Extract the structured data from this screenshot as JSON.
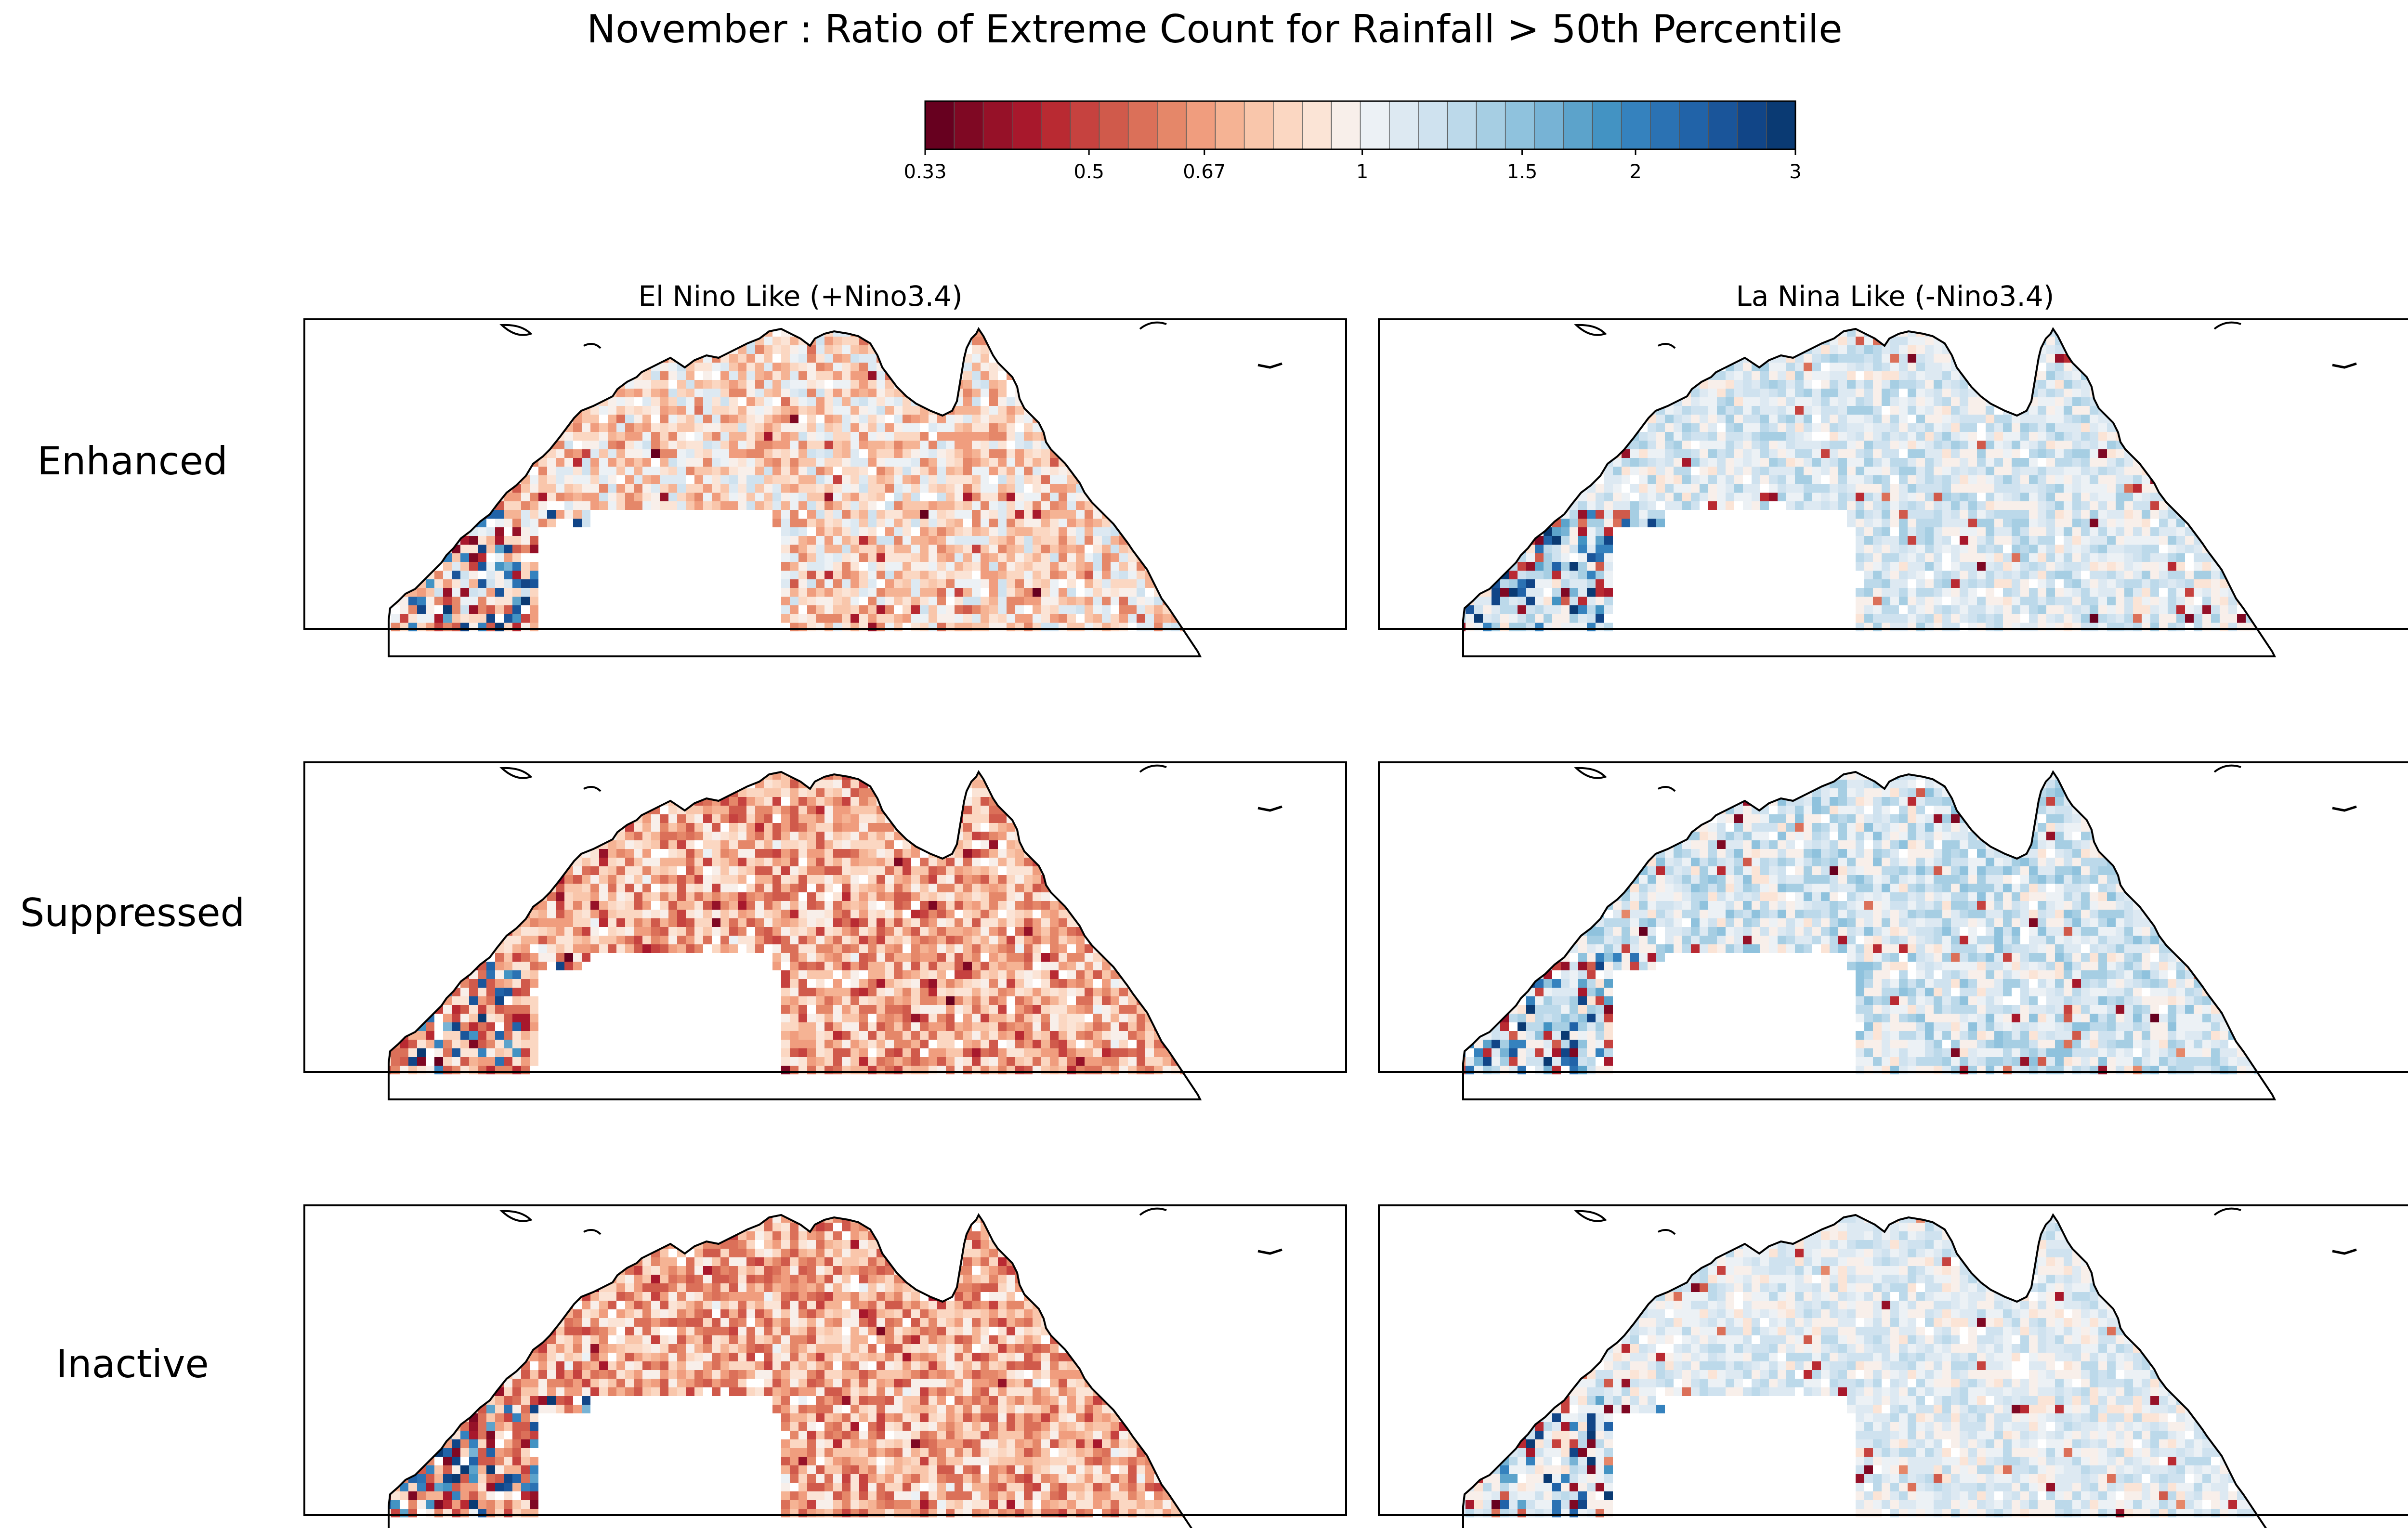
{
  "title": "November : Ratio of Extreme Count for Rainfall > 50th Percentile",
  "colorbar": {
    "tick_labels": [
      "0.33",
      "0.5",
      "0.67",
      "1",
      "1.5",
      "2",
      "3"
    ],
    "tick_values": [
      0.33,
      0.5,
      0.67,
      1,
      1.5,
      2,
      3
    ],
    "scale": "log",
    "range": [
      0.33,
      3
    ],
    "segments": 30,
    "colors": [
      "#67001f",
      "#7f0823",
      "#961128",
      "#a8182c",
      "#b92a32",
      "#c6423f",
      "#d05a4b",
      "#db7059",
      "#e58769",
      "#f09d7e",
      "#f5b394",
      "#f9c6ab",
      "#fbd7c2",
      "#fbe4d6",
      "#f8efea",
      "#ecf1f5",
      "#dde9f2",
      "#cfe2ef",
      "#bcd9ea",
      "#a6cee3",
      "#8fc2dd",
      "#77b3d5",
      "#5ca3cb",
      "#4393c3",
      "#3582be",
      "#2b72b3",
      "#2163a8",
      "#1a559a",
      "#114587",
      "#0a3a73"
    ]
  },
  "columns": [
    "El Nino Like (+Nino3.4)",
    "La Nina Like (-Nino3.4)"
  ],
  "rows": [
    "Enhanced",
    "Suppressed",
    "Inactive"
  ],
  "chart_data": {
    "type": "heatmap",
    "region": "Northern Australia",
    "panels": [
      {
        "row": "Enhanced",
        "column": "El Nino Like (+Nino3.4)",
        "dominant_range": [
          0.6,
          1.2
        ],
        "western_coast": "mixed, strong blue 1.5-3"
      },
      {
        "row": "Enhanced",
        "column": "La Nina Like (-Nino3.4)",
        "dominant_range": [
          0.9,
          1.4
        ],
        "western_coast": "mixed, strong blue and red"
      },
      {
        "row": "Suppressed",
        "column": "El Nino Like (+Nino3.4)",
        "dominant_range": [
          0.5,
          1.0
        ],
        "western_coast": "mostly near 1 to blue"
      },
      {
        "row": "Suppressed",
        "column": "La Nina Like (-Nino3.4)",
        "dominant_range": [
          0.9,
          1.5
        ],
        "western_coast": "blue 1.5-3"
      },
      {
        "row": "Inactive",
        "column": "El Nino Like (+Nino3.4)",
        "dominant_range": [
          0.5,
          1.0
        ],
        "western_coast": "mixed red and blue"
      },
      {
        "row": "Inactive",
        "column": "La Nina Like (-Nino3.4)",
        "dominant_range": [
          0.9,
          1.3
        ],
        "western_coast": "mixed red and blue"
      }
    ]
  }
}
